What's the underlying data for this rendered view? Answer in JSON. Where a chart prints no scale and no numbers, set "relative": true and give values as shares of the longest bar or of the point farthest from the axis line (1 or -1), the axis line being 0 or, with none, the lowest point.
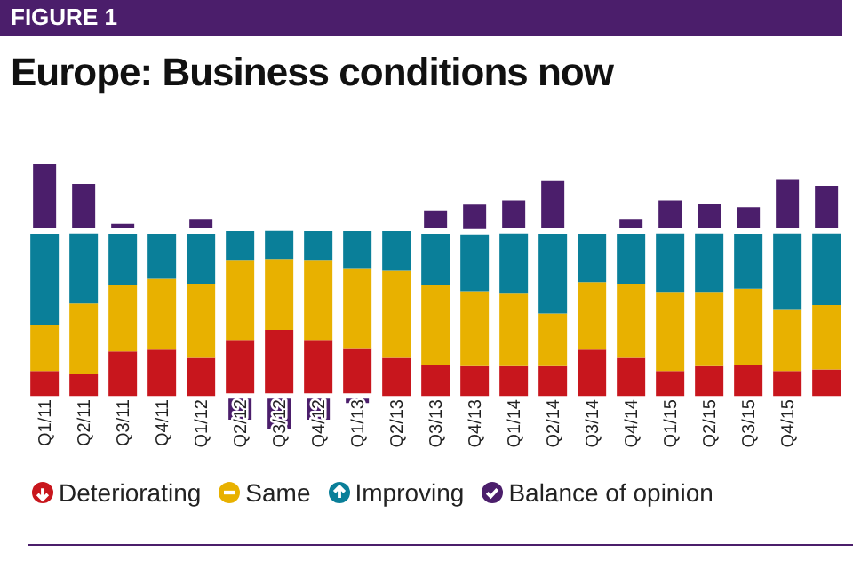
{
  "chart_data": {
    "type": "bar",
    "title": "Europe: Business conditions now",
    "annotations": [
      "FIGURE 1"
    ],
    "categories": [
      "Q1/11",
      "Q2/11",
      "Q3/11",
      "Q4/11",
      "Q1/12",
      "Q2/12",
      "Q3/12",
      "Q4/12",
      "Q1/13",
      "Q2/13",
      "Q3/13",
      "Q4/13",
      "Q1/14",
      "Q2/14",
      "Q3/14",
      "Q4/14",
      "Q1/15",
      "Q2/15",
      "Q3/15",
      "Q4/15",
      null
    ],
    "stacked": true,
    "relative": true,
    "legend": "bottom",
    "series": [
      {
        "name": "Deteriorating",
        "color": "#c8161d",
        "values": [
          0.106,
          0.092,
          0.19,
          0.197,
          0.162,
          0.239,
          0.282,
          0.239,
          0.204,
          0.162,
          0.134,
          0.127,
          0.127,
          0.127,
          0.197,
          0.162,
          0.106,
          0.127,
          0.134,
          0.106,
          0.113
        ]
      },
      {
        "name": "Same",
        "color": "#e8b100",
        "values": [
          0.197,
          0.303,
          0.282,
          0.303,
          0.317,
          0.338,
          0.303,
          0.338,
          0.338,
          0.373,
          0.338,
          0.32,
          0.31,
          0.225,
          0.289,
          0.317,
          0.338,
          0.317,
          0.324,
          0.261,
          0.275
        ]
      },
      {
        "name": "Improving",
        "color": "#0a7f99",
        "values": [
          0.401,
          0.31,
          0.232,
          0.204,
          0.225,
          0.127,
          0.12,
          0.127,
          0.162,
          0.169,
          0.232,
          0.254,
          0.268,
          0.352,
          0.218,
          0.225,
          0.261,
          0.261,
          0.246,
          0.338,
          0.317
        ]
      },
      {
        "name": "Balance of opinion",
        "color": "#4b1e6b",
        "values": [
          0.296,
          0.211,
          0.042,
          0.007,
          0.063,
          -0.113,
          -0.155,
          -0.113,
          -0.042,
          0,
          0.099,
          0.127,
          0.141,
          0.225,
          0.014,
          0.063,
          0.141,
          0.127,
          0.113,
          0.232,
          0.204
        ]
      }
    ]
  }
}
